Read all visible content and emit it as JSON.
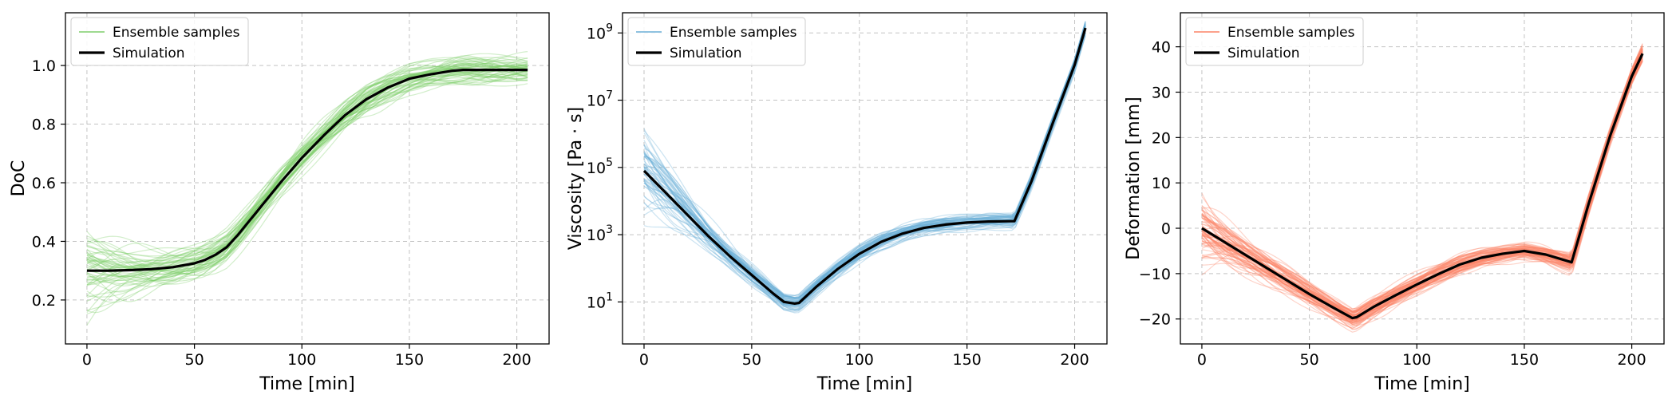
{
  "chart_data": [
    {
      "type": "line",
      "ylabel": "DoC",
      "xlabel": "Time [min]",
      "xlim": [
        -10,
        215
      ],
      "ylim": [
        0.05,
        1.18
      ],
      "yscale": "linear",
      "xticks": [
        0,
        50,
        100,
        150,
        200
      ],
      "xtick_labels": [
        "0",
        "50",
        "100",
        "150",
        "200"
      ],
      "yticks": [
        0.2,
        0.4,
        0.6,
        0.8,
        1.0
      ],
      "ytick_labels": [
        "0.2",
        "0.4",
        "0.6",
        "0.8",
        "1.0"
      ],
      "grid": true,
      "legend_position": "top-left",
      "ensemble_color": "#7fce6b",
      "series": [
        {
          "name": "Ensemble samples",
          "role": "ensemble",
          "color": "#7fce6b",
          "count": 60,
          "spread_start": 0.1,
          "spread_end": 0.06
        },
        {
          "name": "Simulation",
          "role": "simulation",
          "color": "#000000",
          "x": [
            0,
            10,
            20,
            30,
            40,
            50,
            55,
            60,
            65,
            70,
            75,
            80,
            90,
            100,
            110,
            120,
            130,
            140,
            150,
            160,
            170,
            175,
            180,
            190,
            200,
            205
          ],
          "y": [
            0.3,
            0.3,
            0.302,
            0.305,
            0.312,
            0.325,
            0.337,
            0.355,
            0.38,
            0.42,
            0.465,
            0.51,
            0.6,
            0.685,
            0.76,
            0.83,
            0.885,
            0.925,
            0.955,
            0.97,
            0.982,
            0.985,
            0.985,
            0.985,
            0.985,
            0.985
          ]
        }
      ]
    },
    {
      "type": "line",
      "ylabel": "Viscosity [Pa · s]",
      "xlabel": "Time [min]",
      "xlim": [
        -10,
        215
      ],
      "ylim": [
        -0.25,
        9.6
      ],
      "yscale": "log",
      "xticks": [
        0,
        50,
        100,
        150,
        200
      ],
      "xtick_labels": [
        "0",
        "50",
        "100",
        "150",
        "200"
      ],
      "yticks": [
        1,
        3,
        5,
        7,
        9
      ],
      "ytick_base": "10",
      "ytick_exponents": [
        "1",
        "3",
        "5",
        "7",
        "9"
      ],
      "grid": true,
      "legend_position": "top-left",
      "ensemble_color": "#6aaed6",
      "series": [
        {
          "name": "Ensemble samples",
          "role": "ensemble",
          "color": "#6aaed6",
          "count": 60,
          "spread_start": 1.2,
          "spread_end": 0.3
        },
        {
          "name": "Simulation",
          "role": "simulation",
          "color": "#000000",
          "x": [
            0,
            10,
            20,
            30,
            40,
            50,
            60,
            65,
            70,
            72,
            80,
            90,
            100,
            110,
            120,
            130,
            140,
            150,
            160,
            170,
            172,
            180,
            190,
            200,
            205
          ],
          "y": [
            4.9,
            4.25,
            3.6,
            2.95,
            2.35,
            1.8,
            1.25,
            1.0,
            0.95,
            0.97,
            1.45,
            1.98,
            2.43,
            2.78,
            3.03,
            3.2,
            3.3,
            3.36,
            3.39,
            3.4,
            3.4,
            4.6,
            6.35,
            8.05,
            9.15
          ]
        }
      ]
    },
    {
      "type": "line",
      "ylabel": "Deformation [mm]",
      "xlabel": "Time [min]",
      "xlim": [
        -10,
        215
      ],
      "ylim": [
        -25.5,
        47.5
      ],
      "yscale": "linear",
      "xticks": [
        0,
        50,
        100,
        150,
        200
      ],
      "xtick_labels": [
        "0",
        "50",
        "100",
        "150",
        "200"
      ],
      "yticks": [
        -20,
        -10,
        0,
        10,
        20,
        30,
        40
      ],
      "ytick_labels": [
        "−20",
        "−10",
        "0",
        "10",
        "20",
        "30",
        "40"
      ],
      "grid": true,
      "legend_position": "top-left",
      "ensemble_color": "#fb8466",
      "series": [
        {
          "name": "Ensemble samples",
          "role": "ensemble",
          "color": "#fb8466",
          "count": 80,
          "spread_start": 6,
          "spread_end": 2.5
        },
        {
          "name": "Simulation",
          "role": "simulation",
          "color": "#000000",
          "x": [
            0,
            10,
            20,
            30,
            40,
            50,
            60,
            70,
            72,
            80,
            90,
            100,
            110,
            120,
            130,
            140,
            150,
            160,
            172,
            180,
            190,
            200,
            205
          ],
          "y": [
            0,
            -2.9,
            -5.8,
            -8.7,
            -11.6,
            -14.5,
            -17.2,
            -19.8,
            -19.6,
            -17.3,
            -14.8,
            -12.4,
            -10.1,
            -8.0,
            -6.5,
            -5.6,
            -5.0,
            -5.8,
            -7.5,
            5.5,
            20.5,
            33.5,
            38.5
          ]
        }
      ]
    }
  ]
}
